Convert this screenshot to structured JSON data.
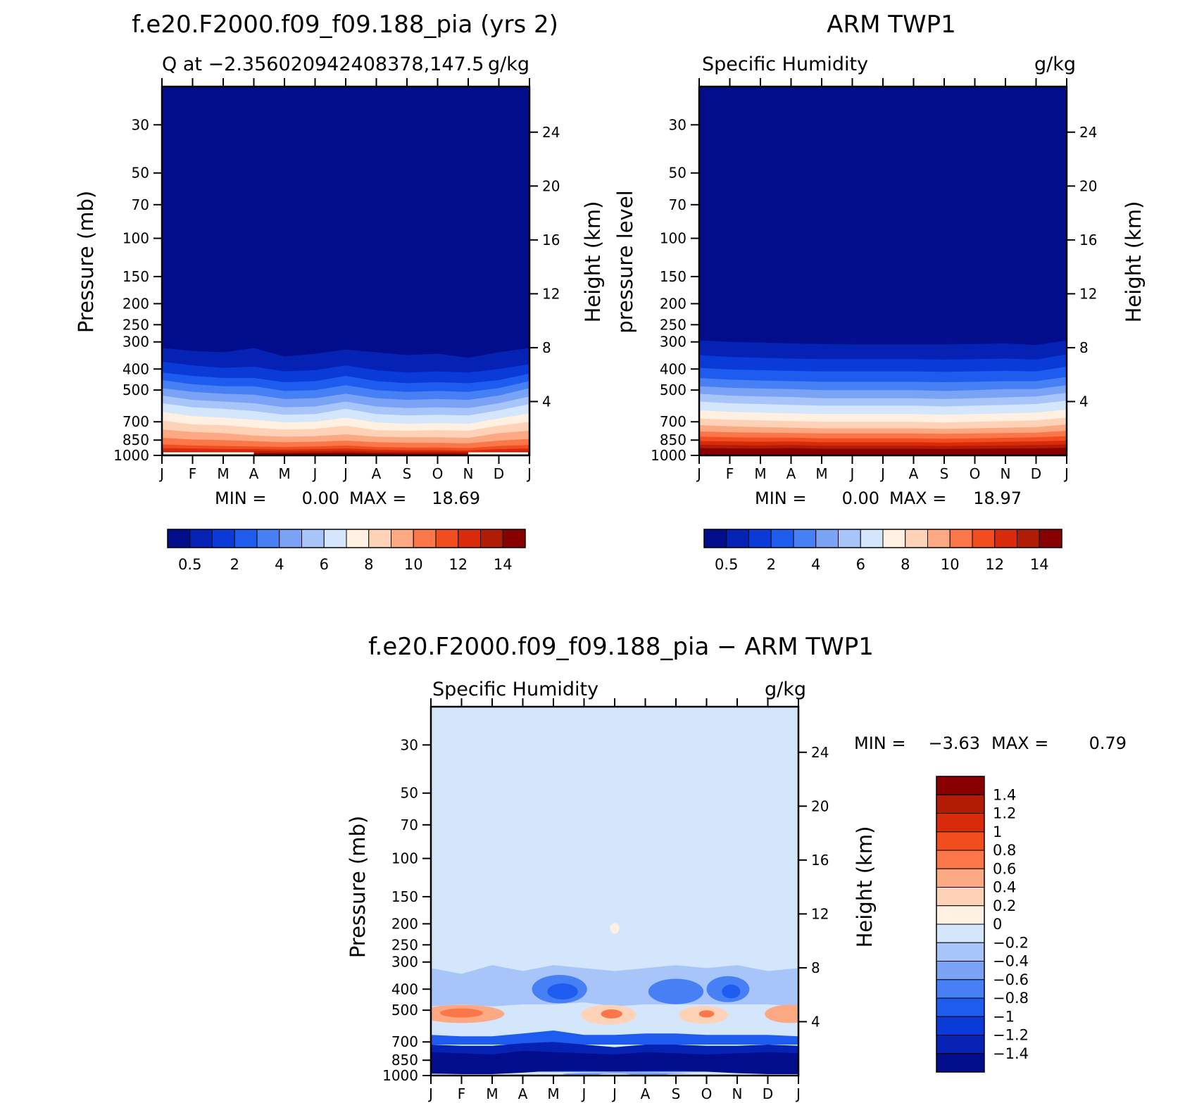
{
  "palette": {
    "cool": [
      "#020d8c",
      "#0522b4",
      "#0a3ad8",
      "#1e5cf0",
      "#4780f5",
      "#7aa3f5",
      "#a8c5fa",
      "#d4e6fc",
      "#fff0e2",
      "#fdd2b6",
      "#fca882",
      "#fb7648",
      "#f14d1e",
      "#d92a0c",
      "#b01c04",
      "#880000"
    ],
    "line": "#000000"
  },
  "chart_data": [
    {
      "type": "heatmap",
      "title": "f.e20.F2000.f09_f09.188_pia (yrs 2)",
      "subtitle_left": "Q at −2.356020942408378,147.5",
      "subtitle_right": "g/kg",
      "ylabel": "Pressure (mb)",
      "y2label": "Height (km)",
      "months": [
        "J",
        "F",
        "M",
        "A",
        "M",
        "J",
        "J",
        "A",
        "S",
        "O",
        "N",
        "D",
        "J"
      ],
      "pressure_levels": [
        30,
        50,
        70,
        100,
        150,
        200,
        250,
        300,
        400,
        500,
        700,
        850,
        1000
      ],
      "height_ticks": [
        24,
        20,
        16,
        12,
        8,
        4
      ],
      "ylim": [
        1000,
        20
      ],
      "min_label": "MIN =",
      "min_value": "0.00",
      "max_label": "MAX =",
      "max_value": "18.69",
      "colorbar_ticks": [
        "0.5",
        "2",
        "4",
        "6",
        "8",
        "10",
        "12",
        "14"
      ],
      "contour_levels": [
        0.1,
        0.5,
        1,
        2,
        3,
        4,
        5,
        6,
        7,
        8,
        9,
        10,
        11,
        12,
        13,
        14
      ],
      "contour_tops_mb": [
        [
          320,
          330,
          335,
          320,
          350,
          340,
          325,
          335,
          345,
          340,
          355,
          335,
          320
        ],
        [
          370,
          385,
          395,
          390,
          410,
          405,
          385,
          405,
          415,
          410,
          415,
          400,
          380
        ],
        [
          415,
          430,
          440,
          440,
          460,
          455,
          430,
          455,
          465,
          460,
          465,
          450,
          420
        ],
        [
          450,
          470,
          480,
          480,
          505,
          500,
          475,
          500,
          510,
          505,
          510,
          490,
          455
        ],
        [
          490,
          510,
          520,
          525,
          550,
          545,
          520,
          545,
          555,
          550,
          555,
          530,
          490
        ],
        [
          530,
          555,
          565,
          575,
          600,
          595,
          565,
          595,
          605,
          600,
          605,
          575,
          535
        ],
        [
          575,
          600,
          610,
          625,
          650,
          645,
          610,
          645,
          655,
          650,
          655,
          620,
          580
        ],
        [
          630,
          660,
          670,
          685,
          705,
          700,
          670,
          705,
          715,
          710,
          715,
          675,
          640
        ],
        [
          690,
          720,
          725,
          745,
          760,
          755,
          730,
          765,
          770,
          765,
          770,
          730,
          700
        ],
        [
          760,
          780,
          790,
          810,
          820,
          815,
          800,
          820,
          825,
          825,
          830,
          790,
          770
        ],
        [
          830,
          845,
          850,
          860,
          870,
          865,
          855,
          870,
          875,
          875,
          880,
          855,
          840
        ],
        [
          890,
          900,
          905,
          910,
          915,
          910,
          900,
          915,
          920,
          920,
          925,
          905,
          895
        ],
        [
          925,
          930,
          935,
          935,
          940,
          935,
          930,
          940,
          945,
          945,
          950,
          935,
          930
        ],
        [
          955,
          958,
          960,
          958,
          960,
          955,
          952,
          960,
          962,
          962,
          965,
          958,
          955
        ],
        [
          975,
          978,
          980,
          978,
          978,
          975,
          972,
          978,
          980,
          980,
          982,
          978,
          975
        ],
        [
          988,
          990,
          991,
          990,
          990,
          988,
          986,
          990,
          991,
          991,
          992,
          990,
          988
        ]
      ]
    },
    {
      "type": "heatmap",
      "title": "ARM TWP1",
      "subtitle_left": "Specific Humidity",
      "subtitle_right": "g/kg",
      "ylabel": "pressure level",
      "y2label": "Height (km)",
      "months": [
        "J",
        "F",
        "M",
        "A",
        "M",
        "J",
        "J",
        "A",
        "S",
        "O",
        "N",
        "D",
        "J"
      ],
      "pressure_levels": [
        30,
        50,
        70,
        100,
        150,
        200,
        250,
        300,
        400,
        500,
        700,
        850,
        1000
      ],
      "height_ticks": [
        24,
        20,
        16,
        12,
        8,
        4
      ],
      "ylim": [
        1000,
        20
      ],
      "min_label": "MIN =",
      "min_value": "0.00",
      "max_label": "MAX =",
      "max_value": "18.97",
      "colorbar_ticks": [
        "0.5",
        "2",
        "4",
        "6",
        "8",
        "10",
        "12",
        "14"
      ],
      "contour_levels": [
        0.1,
        0.5,
        1,
        2,
        3,
        4,
        5,
        6,
        7,
        8,
        9,
        10,
        11,
        12,
        13,
        14
      ],
      "contour_tops_mb": [
        [
          295,
          300,
          302,
          305,
          307,
          308,
          308,
          308,
          308,
          307,
          305,
          310,
          295
        ],
        [
          345,
          352,
          355,
          358,
          360,
          360,
          360,
          360,
          362,
          360,
          358,
          362,
          342
        ],
        [
          395,
          402,
          405,
          408,
          410,
          410,
          410,
          410,
          412,
          410,
          408,
          410,
          390
        ],
        [
          440,
          448,
          452,
          455,
          458,
          458,
          458,
          458,
          460,
          458,
          455,
          455,
          435
        ],
        [
          480,
          488,
          492,
          495,
          500,
          500,
          500,
          500,
          505,
          500,
          495,
          495,
          475
        ],
        [
          520,
          530,
          535,
          538,
          545,
          545,
          545,
          545,
          550,
          545,
          540,
          535,
          515
        ],
        [
          565,
          575,
          580,
          585,
          590,
          590,
          590,
          590,
          595,
          590,
          585,
          580,
          560
        ],
        [
          620,
          630,
          635,
          640,
          645,
          645,
          645,
          645,
          650,
          645,
          640,
          635,
          615
        ],
        [
          675,
          685,
          690,
          695,
          700,
          700,
          700,
          700,
          705,
          700,
          695,
          690,
          670
        ],
        [
          725,
          735,
          740,
          745,
          750,
          750,
          750,
          750,
          755,
          750,
          745,
          740,
          720
        ],
        [
          775,
          782,
          785,
          788,
          792,
          792,
          792,
          792,
          795,
          792,
          788,
          785,
          770
        ],
        [
          820,
          825,
          828,
          828,
          835,
          835,
          835,
          835,
          838,
          835,
          830,
          825,
          815
        ],
        [
          858,
          862,
          865,
          862,
          870,
          870,
          870,
          870,
          872,
          870,
          865,
          862,
          855
        ],
        [
          893,
          897,
          900,
          895,
          903,
          903,
          903,
          903,
          905,
          903,
          900,
          897,
          890
        ],
        [
          925,
          928,
          930,
          925,
          932,
          932,
          932,
          932,
          934,
          932,
          930,
          928,
          922
        ],
        [
          958,
          960,
          962,
          958,
          963,
          963,
          963,
          963,
          965,
          963,
          962,
          960,
          956
        ]
      ]
    },
    {
      "type": "heatmap",
      "title": "f.e20.F2000.f09_f09.188_pia − ARM TWP1",
      "subtitle_left": "Specific Humidity",
      "subtitle_right": "g/kg",
      "ylabel": "Pressure (mb)",
      "y2label": "Height (km)",
      "months": [
        "J",
        "F",
        "M",
        "A",
        "M",
        "J",
        "J",
        "A",
        "S",
        "O",
        "N",
        "D",
        "J"
      ],
      "pressure_levels": [
        30,
        50,
        70,
        100,
        150,
        200,
        250,
        300,
        400,
        500,
        700,
        850,
        1000
      ],
      "height_ticks": [
        24,
        20,
        16,
        12,
        8,
        4
      ],
      "ylim": [
        1000,
        20
      ],
      "min_label": "MIN =",
      "min_value": "−3.63",
      "max_label": "MAX =",
      "max_value": "0.79",
      "colorbar_ticks": [
        "1.4",
        "1.2",
        "1",
        "0.8",
        "0.6",
        "0.4",
        "0.2",
        "0",
        "−0.2",
        "−0.4",
        "−0.6",
        "−0.8",
        "−1",
        "−1.2",
        "−1.4"
      ],
      "background_value": -0.1,
      "features": [
        {
          "kind": "band",
          "value": -0.3,
          "top": [
            320,
            340,
            310,
            330,
            310,
            320,
            330,
            320,
            310,
            320,
            310,
            330,
            320
          ],
          "bottom": [
            480,
            470,
            480,
            470,
            470,
            460,
            480,
            470,
            470,
            470,
            470,
            470,
            480
          ]
        },
        {
          "kind": "blob",
          "value": -0.7,
          "month": 4.2,
          "p": 400,
          "rx": 0.9,
          "rp": 60
        },
        {
          "kind": "blob",
          "value": -0.9,
          "month": 4.3,
          "p": 410,
          "rx": 0.5,
          "rp": 35
        },
        {
          "kind": "blob",
          "value": -0.7,
          "month": 8.0,
          "p": 410,
          "rx": 0.9,
          "rp": 55
        },
        {
          "kind": "blob",
          "value": -0.7,
          "month": 9.7,
          "p": 400,
          "rx": 0.7,
          "rp": 55
        },
        {
          "kind": "blob",
          "value": -0.9,
          "month": 9.8,
          "p": 410,
          "rx": 0.3,
          "rp": 30
        },
        {
          "kind": "blob",
          "value": 0.5,
          "month": 1.0,
          "p": 520,
          "rx": 1.4,
          "rp": 50
        },
        {
          "kind": "blob",
          "value": 0.7,
          "month": 1.0,
          "p": 515,
          "rx": 0.7,
          "rp": 25
        },
        {
          "kind": "blob",
          "value": 0.3,
          "month": 5.8,
          "p": 525,
          "rx": 0.9,
          "rp": 55
        },
        {
          "kind": "blob",
          "value": 0.7,
          "month": 5.9,
          "p": 520,
          "rx": 0.35,
          "rp": 25
        },
        {
          "kind": "blob",
          "value": 0.3,
          "month": 8.9,
          "p": 525,
          "rx": 0.8,
          "rp": 50
        },
        {
          "kind": "blob",
          "value": 0.7,
          "month": 9.0,
          "p": 520,
          "rx": 0.25,
          "rp": 20
        },
        {
          "kind": "blob",
          "value": 0.5,
          "month": 11.7,
          "p": 520,
          "rx": 0.8,
          "rp": 50
        },
        {
          "kind": "blob",
          "value": 0.1,
          "month": 6.0,
          "p": 210,
          "rx": 0.15,
          "rp": 12
        },
        {
          "kind": "band",
          "value": -0.9,
          "top": [
            650,
            660,
            660,
            640,
            620,
            650,
            650,
            640,
            640,
            650,
            650,
            650,
            660
          ],
          "bottom": [
            720,
            720,
            720,
            720,
            720,
            720,
            720,
            720,
            720,
            720,
            720,
            720,
            720
          ]
        },
        {
          "kind": "band",
          "value": -1.3,
          "top": [
            720,
            730,
            730,
            710,
            700,
            720,
            740,
            720,
            720,
            730,
            730,
            720,
            730
          ],
          "bottom": [
            960,
            960,
            960,
            960,
            960,
            960,
            960,
            960,
            960,
            960,
            960,
            960,
            960
          ]
        },
        {
          "kind": "band",
          "value": -1.6,
          "top": [
            780,
            790,
            800,
            770,
            780,
            790,
            800,
            780,
            790,
            800,
            790,
            780,
            790
          ],
          "bottom": [
            980,
            985,
            985,
            970,
            950,
            945,
            960,
            950,
            945,
            960,
            975,
            985,
            985
          ]
        },
        {
          "kind": "blob",
          "value": -0.5,
          "month": 6.5,
          "p": 985,
          "rx": 2.2,
          "rp": 20
        },
        {
          "kind": "blob",
          "value": -0.1,
          "month": 6.0,
          "p": 988,
          "rx": 0.5,
          "rp": 10
        },
        {
          "kind": "blob",
          "value": -0.1,
          "month": 8.5,
          "p": 988,
          "rx": 0.8,
          "rp": 10
        }
      ]
    }
  ]
}
